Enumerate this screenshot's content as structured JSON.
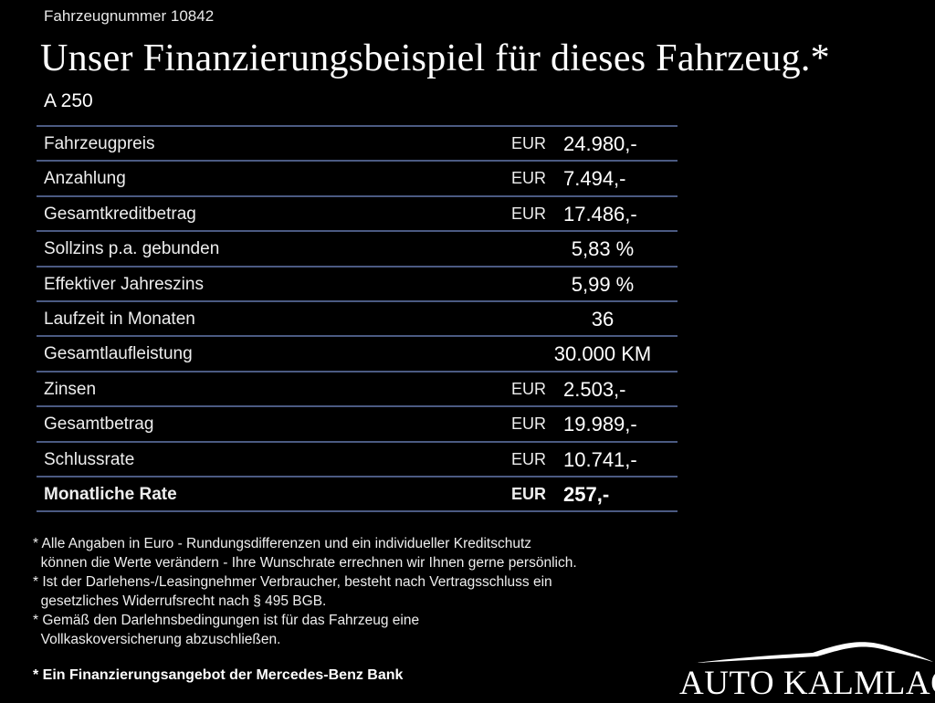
{
  "header": {
    "vehicle_number": "Fahrzeugnummer 10842",
    "title": "Unser Finanzierungsbeispiel für dieses Fahrzeug.*",
    "model": "A 250"
  },
  "table": {
    "rows": [
      {
        "label": "Fahrzeugpreis",
        "currency": "EUR",
        "value": "24.980,-"
      },
      {
        "label": "Anzahlung",
        "currency": "EUR",
        "value": "7.494,-"
      },
      {
        "label": "Gesamtkreditbetrag",
        "currency": "EUR",
        "value": "17.486,-"
      },
      {
        "label": "Sollzins p.a. gebunden",
        "currency": "",
        "value": "5,83 %"
      },
      {
        "label": "Effektiver Jahreszins",
        "currency": "",
        "value": "5,99 %"
      },
      {
        "label": "Laufzeit in Monaten",
        "currency": "",
        "value": "36"
      },
      {
        "label": "Gesamtlaufleistung",
        "currency": "",
        "value": "30.000 KM"
      },
      {
        "label": "Zinsen",
        "currency": "EUR",
        "value": "2.503,-"
      },
      {
        "label": "Gesamtbetrag",
        "currency": "EUR",
        "value": "19.989,-"
      },
      {
        "label": "Schlussrate",
        "currency": "EUR",
        "value": "10.741,-"
      },
      {
        "label": "Monatliche Rate",
        "currency": "EUR",
        "value": "257,-",
        "bold": true
      }
    ]
  },
  "notes": [
    "* Alle Angaben in Euro - Rundungsdifferenzen und ein individueller Kreditschutz",
    "  können die Werte verändern - Ihre Wunschrate errechnen wir Ihnen gerne persönlich.",
    "* Ist der Darlehens-/Leasingnehmer Verbraucher, besteht nach Vertragsschluss ein",
    "  gesetzliches Widerrufsrecht nach § 495 BGB.",
    "* Gemäß den Darlehnsbedingungen ist für das Fahrzeug eine",
    "  Vollkaskoversicherung abzuschließen."
  ],
  "footer": "* Ein Finanzierungsangebot der Mercedes-Benz Bank",
  "logo": {
    "text": "AUTO KALMLAGE"
  },
  "colors": {
    "background": "#000000",
    "divider": "#4b5a82",
    "text": "#ffffff"
  }
}
